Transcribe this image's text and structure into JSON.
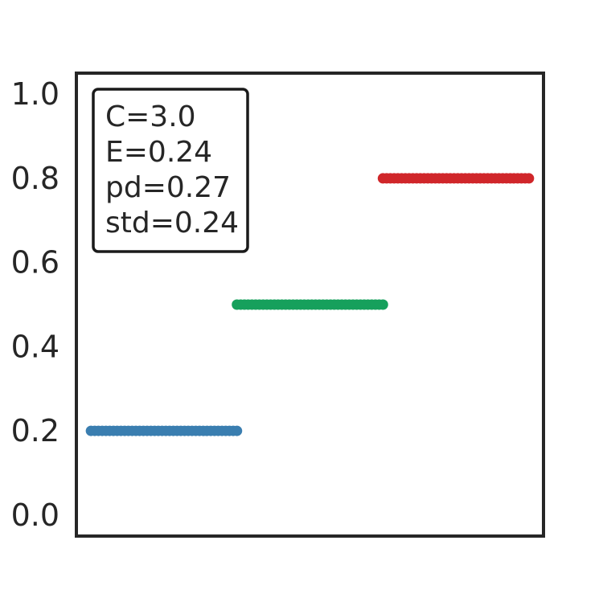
{
  "chart_data": {
    "type": "scatter",
    "title": "",
    "xlabel": "",
    "ylabel": "",
    "ylim": [
      -0.05,
      1.05
    ],
    "yticks": [
      0.0,
      0.2,
      0.4,
      0.6,
      0.8,
      1.0
    ],
    "ytick_labels": [
      "0.0",
      "0.2",
      "0.4",
      "0.6",
      "0.8",
      "1.0"
    ],
    "xticks_visible": false,
    "grid": false,
    "legend": "none",
    "annotation": {
      "placement": "top-left",
      "lines": [
        "C=3.0",
        "E=0.24",
        "pd=0.27",
        "std=0.24"
      ]
    },
    "series": [
      {
        "color": "#3a7eb0",
        "x_range": [
          0.0,
          1.0
        ],
        "y": 0.2,
        "n_points": 40
      },
      {
        "color": "#16a05c",
        "x_range": [
          1.0,
          2.0
        ],
        "y": 0.5,
        "n_points": 40
      },
      {
        "color": "#d0262a",
        "x_range": [
          2.0,
          3.0
        ],
        "y": 0.8,
        "n_points": 40
      }
    ],
    "xlim": [
      -0.1,
      3.1
    ]
  }
}
